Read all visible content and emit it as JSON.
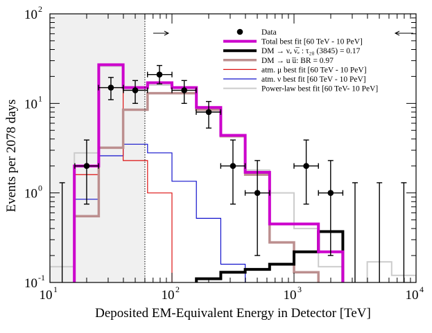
{
  "chart_data": {
    "type": "histogram",
    "xlabel": "Deposited EM-Equivalent Energy in Detector [TeV]",
    "ylabel": "Events per 2078 days",
    "xscale": "log",
    "yscale": "log",
    "xlim": [
      10,
      10000
    ],
    "ylim": [
      0.1,
      100
    ],
    "x_ticks": [
      {
        "base": "10",
        "exp": "1",
        "value": 10
      },
      {
        "base": "10",
        "exp": "2",
        "value": 100
      },
      {
        "base": "10",
        "exp": "3",
        "value": 1000
      },
      {
        "base": "10",
        "exp": "4",
        "value": 10000
      }
    ],
    "y_ticks": [
      {
        "base": "10",
        "exp": "-1",
        "value": 0.1
      },
      {
        "base": "10",
        "exp": "0",
        "value": 1
      },
      {
        "base": "10",
        "exp": "1",
        "value": 10
      },
      {
        "base": "10",
        "exp": "2",
        "value": 100
      }
    ],
    "shaded_region": [
      10,
      60
    ],
    "threshold_line": 60,
    "bin_edges": [
      15.85,
      25.12,
      39.81,
      63.1,
      100,
      158.5,
      251.2,
      398.1,
      631,
      1000,
      1585,
      2512
    ],
    "series": [
      {
        "name": "Total best fit [60 TeV - 10 PeV]",
        "color": "#cc00cc",
        "width": 4,
        "values": [
          2.0,
          27,
          15,
          17,
          15,
          9,
          4.4,
          1.7,
          0.45,
          0.45,
          0.22
        ]
      },
      {
        "name": "DM → νₑ ν̅ₑ : τ₂₈ (3845) = 0.17",
        "color": "#000000",
        "width": 4,
        "values": [
          null,
          null,
          null,
          null,
          null,
          0.11,
          0.13,
          0.14,
          0.16,
          0.22,
          0.37
        ]
      },
      {
        "name": "DM → u u̅:  BR = 0.97",
        "color": "#bc8f8f",
        "width": 3.5,
        "values": [
          0.55,
          3.2,
          8.5,
          13,
          13,
          8.5,
          4.3,
          1.6,
          0.28,
          0.13,
          0.08
        ]
      },
      {
        "name": "atm. μ best fit [60 TeV - 10 PeV]",
        "color": "#dd1111",
        "width": 1.2,
        "values": [
          1.6,
          15,
          2.3,
          1.0,
          null,
          null,
          null,
          null,
          null,
          null,
          null
        ]
      },
      {
        "name": "atm. ν best fit [60 TeV - 10 PeV]",
        "color": "#1111cc",
        "width": 1.2,
        "values": [
          0.85,
          2.6,
          3.5,
          2.8,
          1.35,
          0.52,
          0.16,
          0.1,
          null,
          null,
          null
        ]
      },
      {
        "name": "Power-law best fit [60 TeV- 10 PeV]",
        "color": "#cccccc",
        "width": 2,
        "values": [
          2.8,
          26,
          14,
          16,
          13,
          9,
          4.3,
          1.8,
          1.0,
          0.4,
          0.15
        ]
      }
    ],
    "extra_bins": [
      {
        "series": 5,
        "edges": [
          10,
          15.85
        ],
        "value": 0.15
      },
      {
        "series": 5,
        "edges": [
          2512,
          3981,
          6310,
          10000
        ],
        "values": [
          0.05,
          0.17,
          0.12
        ]
      }
    ],
    "data_points": [
      {
        "x": 20,
        "y": 2,
        "xlo": 16,
        "xhi": 25,
        "ylo": 0.75,
        "yhi": 3.9
      },
      {
        "x": 31.6,
        "y": 15,
        "xlo": 25,
        "xhi": 40,
        "ylo": 11,
        "yhi": 19.5
      },
      {
        "x": 50,
        "y": 14,
        "xlo": 40,
        "xhi": 63,
        "ylo": 10,
        "yhi": 18
      },
      {
        "x": 79,
        "y": 21,
        "xlo": 63,
        "xhi": 100,
        "ylo": 16.5,
        "yhi": 26.5
      },
      {
        "x": 126,
        "y": 14,
        "xlo": 100,
        "xhi": 158,
        "ylo": 10,
        "yhi": 18
      },
      {
        "x": 200,
        "y": 8,
        "xlo": 158,
        "xhi": 251,
        "ylo": 5.3,
        "yhi": 10.5
      },
      {
        "x": 316,
        "y": 2,
        "xlo": 251,
        "xhi": 398,
        "ylo": 0.75,
        "yhi": 3.9
      },
      {
        "x": 501,
        "y": 1,
        "xlo": 398,
        "xhi": 631,
        "ylo": 0.2,
        "yhi": 2.3
      },
      {
        "x": 1259,
        "y": 2,
        "xlo": 1000,
        "xhi": 1585,
        "ylo": 0.75,
        "yhi": 3.9
      },
      {
        "x": 1995,
        "y": 1,
        "xlo": 1585,
        "xhi": 2512,
        "ylo": 0.2,
        "yhi": 2.3
      }
    ],
    "upper_limits": [
      12.6,
      3162,
      5012,
      7943
    ],
    "upper_limit_value": 1.3,
    "legend": [
      {
        "label": "Data",
        "type": "marker"
      },
      {
        "label": "Total best fit [60 TeV - 10 PeV]",
        "series": 0
      },
      {
        "label": "DM → νₑ ν̅ₑ : τ₂₈ (3845) = 0.17",
        "series": 1
      },
      {
        "label": "DM → u u̅:  BR = 0.97",
        "series": 2
      },
      {
        "label": "atm. μ best fit [60 TeV - 10 PeV]",
        "series": 3
      },
      {
        "label": "atm. ν best fit [60 TeV - 10 PeV]",
        "series": 4
      },
      {
        "label": "Power-law best fit [60 TeV- 10 PeV]",
        "series": 5
      }
    ],
    "legend_position": "top-right",
    "colors": {
      "shade": "#f0f0f0",
      "frame": "#000000"
    }
  }
}
